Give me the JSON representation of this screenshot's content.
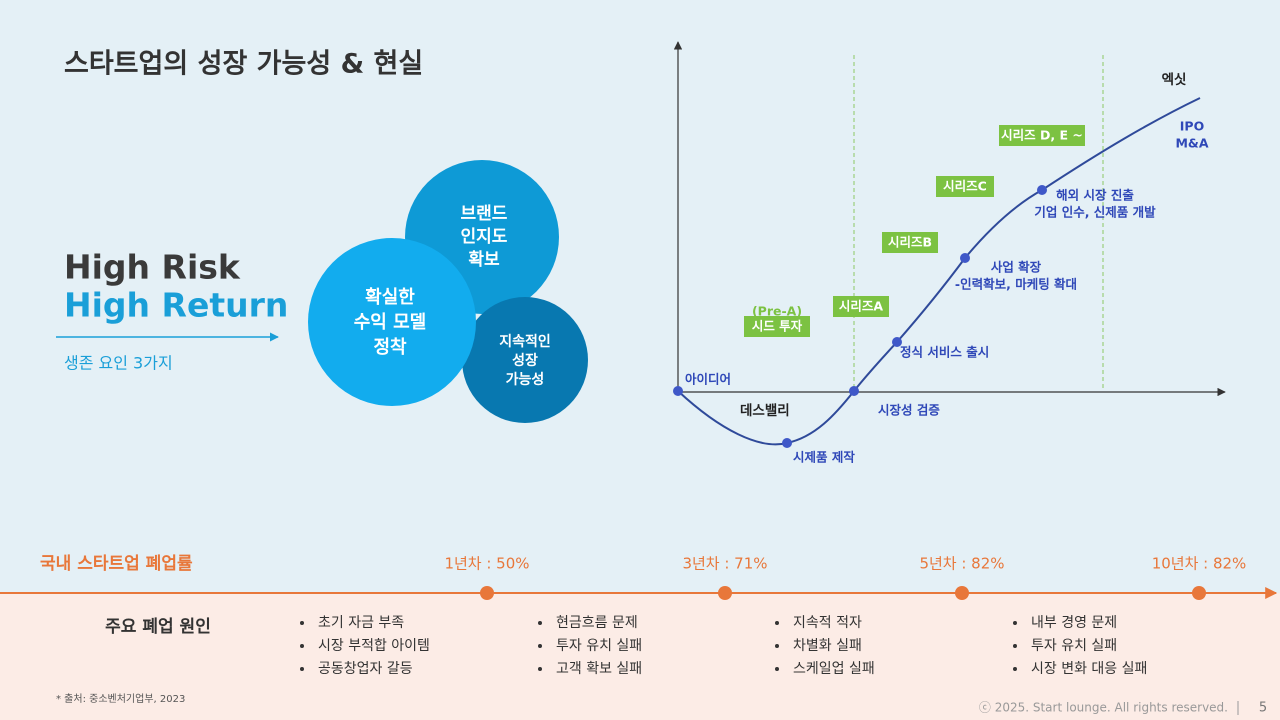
{
  "header": {
    "title": "스타트업의 성장 가능성 & 현실"
  },
  "left": {
    "headline": [
      "High Risk",
      "High Return"
    ],
    "subtitle": "생존 요인 3가지"
  },
  "circles": [
    {
      "lines": [
        "브랜드",
        "인지도",
        "확보"
      ]
    },
    {
      "lines": [
        "확실한",
        "수익 모델",
        "정착"
      ]
    },
    {
      "lines": [
        "지속적인",
        "성장",
        "가능성"
      ]
    }
  ],
  "diagram": {
    "stages": [
      "아이디어",
      "데스밸리",
      "시제품 제작",
      "시장성 검증",
      "정식 서비스 출시"
    ],
    "expansion": [
      "사업 확장",
      "-인력확보, 마케팅 확대"
    ],
    "overseas": [
      "해외 시장 진출",
      "기업 인수, 신제품 개발"
    ],
    "exit": {
      "title": "엑싯",
      "lines": [
        "IPO",
        "M&A"
      ]
    },
    "pre_a": "(Pre-A)",
    "rounds": [
      "시드 투자",
      "시리즈A",
      "시리즈B",
      "시리즈C",
      "시리즈 D, E ~"
    ]
  },
  "timeline": {
    "title": "국내 스타트업 폐업률",
    "milestones": [
      "1년차 : 50%",
      "3년차 : 71%",
      "5년차 : 82%",
      "10년차 : 82%"
    ]
  },
  "causes": {
    "title": "주요 폐업 원인",
    "columns": [
      [
        "초기 자금 부족",
        "시장 부적합 아이템",
        "공동창업자 갈등"
      ],
      [
        "현금흐름 문제",
        "투자 유치 실패",
        "고객 확보 실패"
      ],
      [
        "지속적 적자",
        "차별화 실패",
        "스케일업 실패"
      ],
      [
        "내부 경영 문제",
        "투자 유치 실패",
        "시장 변화 대응 실패"
      ]
    ]
  },
  "footer": {
    "source": "* 출처: 중소벤처기업부, 2023",
    "copyright": "ⓒ 2025. Start lounge. All rights reserved.",
    "page": "5"
  }
}
